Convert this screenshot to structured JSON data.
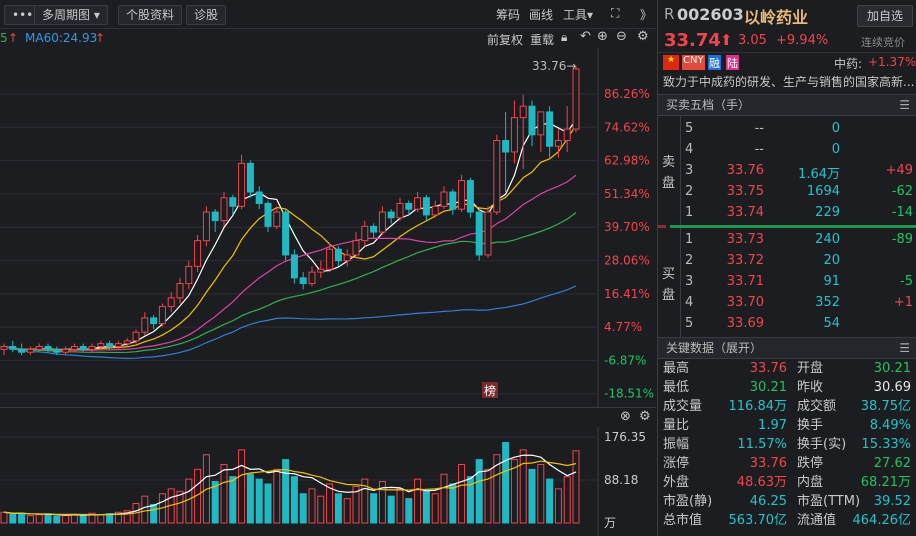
{
  "toolbar": {
    "more": "•••",
    "multi_period": "多周期图 ▾",
    "stock_info": "个股资料",
    "diagnose": "诊股",
    "chips": "筹码",
    "draw": "画线",
    "tools": "工具▾",
    "expand": "⛶",
    "collapse": "》"
  },
  "ma_legend": {
    "prev_suffix": "5",
    "ma60": "MA60:24.93"
  },
  "chart_toolbar": {
    "adjust": "前复权",
    "reload": "重载"
  },
  "chart_data": {
    "type": "candlestick",
    "y_axis_ticks": [
      "86.26%",
      "74.62%",
      "62.98%",
      "51.34%",
      "39.70%",
      "28.06%",
      "16.41%",
      "4.77%",
      "-6.87%",
      "-18.51%"
    ],
    "y_axis_values": [
      86.26,
      74.62,
      62.98,
      51.34,
      39.7,
      28.06,
      16.41,
      4.77,
      -6.87,
      -18.51
    ],
    "high_marker": "33.76→",
    "badge": "榜",
    "candles_pct": [
      [
        -3,
        -1,
        -5,
        -2
      ],
      [
        -2,
        0,
        -4,
        -3
      ],
      [
        -3,
        -1,
        -5,
        -4
      ],
      [
        -4,
        -2,
        -5,
        -3
      ],
      [
        -3,
        -1,
        -4,
        -2
      ],
      [
        -2,
        -1,
        -4,
        -3
      ],
      [
        -3,
        -2,
        -5,
        -4
      ],
      [
        -4,
        -2,
        -5,
        -3
      ],
      [
        -3,
        -1,
        -4,
        -2
      ],
      [
        -2,
        -1,
        -4,
        -3
      ],
      [
        -3,
        -1,
        -4,
        -2
      ],
      [
        -2,
        0,
        -3,
        -1
      ],
      [
        -1,
        0,
        -3,
        -2
      ],
      [
        -2,
        0,
        -3,
        -1
      ],
      [
        -1,
        1,
        -2,
        0
      ],
      [
        0,
        4,
        -1,
        3
      ],
      [
        3,
        10,
        2,
        8
      ],
      [
        8,
        9,
        4,
        6
      ],
      [
        6,
        13,
        5,
        12
      ],
      [
        12,
        17,
        10,
        15
      ],
      [
        15,
        22,
        13,
        20
      ],
      [
        20,
        28,
        18,
        26
      ],
      [
        26,
        37,
        24,
        35
      ],
      [
        35,
        47,
        33,
        45
      ],
      [
        45,
        46,
        38,
        42
      ],
      [
        42,
        52,
        40,
        50
      ],
      [
        50,
        51,
        44,
        47
      ],
      [
        47,
        65,
        46,
        62
      ],
      [
        62,
        63,
        50,
        52
      ],
      [
        52,
        54,
        46,
        48
      ],
      [
        48,
        49,
        38,
        40
      ],
      [
        40,
        47,
        39,
        45
      ],
      [
        45,
        46,
        28,
        30
      ],
      [
        30,
        32,
        20,
        22
      ],
      [
        22,
        24,
        18,
        20
      ],
      [
        20,
        26,
        19,
        24
      ],
      [
        24,
        28,
        22,
        25
      ],
      [
        25,
        34,
        24,
        32
      ],
      [
        32,
        33,
        26,
        28
      ],
      [
        28,
        32,
        26,
        30
      ],
      [
        30,
        38,
        29,
        35
      ],
      [
        35,
        42,
        33,
        40
      ],
      [
        40,
        41,
        36,
        38
      ],
      [
        38,
        47,
        37,
        45
      ],
      [
        45,
        46,
        41,
        43
      ],
      [
        43,
        50,
        42,
        48
      ],
      [
        48,
        49,
        44,
        46
      ],
      [
        46,
        52,
        45,
        50
      ],
      [
        50,
        51,
        42,
        44
      ],
      [
        44,
        49,
        43,
        47
      ],
      [
        47,
        54,
        46,
        52
      ],
      [
        52,
        53,
        44,
        46
      ],
      [
        46,
        58,
        45,
        56
      ],
      [
        56,
        57,
        43,
        45
      ],
      [
        45,
        46,
        28,
        30
      ],
      [
        30,
        47,
        29,
        45
      ],
      [
        45,
        72,
        44,
        70
      ],
      [
        70,
        80,
        52,
        66
      ],
      [
        66,
        84,
        62,
        78
      ],
      [
        78,
        86,
        60,
        82
      ],
      [
        82,
        84,
        68,
        72
      ],
      [
        72,
        80,
        66,
        80
      ],
      [
        80,
        82,
        64,
        68
      ],
      [
        68,
        74,
        64,
        70
      ],
      [
        70,
        82,
        66,
        74
      ],
      [
        74,
        96,
        73,
        95
      ]
    ],
    "ma_series": [
      {
        "name": "MA5",
        "color": "#ffffff",
        "period": 5
      },
      {
        "name": "MA10",
        "color": "#f2c200",
        "period": 10
      },
      {
        "name": "MA20",
        "color": "#e040a8",
        "period": 20
      },
      {
        "name": "MA30",
        "color": "#2db34a",
        "period": 30
      },
      {
        "name": "MA60",
        "color": "#2f7fd6",
        "period": 60
      }
    ],
    "volume": {
      "unit": "万",
      "ticks": [
        "176.35",
        "88.18"
      ],
      "tick_values": [
        176.35,
        88.18
      ],
      "values": [
        22,
        18,
        20,
        15,
        17,
        19,
        14,
        16,
        18,
        15,
        20,
        17,
        19,
        22,
        25,
        40,
        55,
        38,
        60,
        70,
        65,
        90,
        110,
        140,
        85,
        120,
        95,
        150,
        100,
        90,
        80,
        110,
        130,
        95,
        60,
        70,
        55,
        80,
        60,
        50,
        75,
        90,
        60,
        85,
        55,
        70,
        50,
        90,
        65,
        60,
        100,
        80,
        120,
        95,
        130,
        110,
        140,
        165,
        130,
        150,
        110,
        120,
        90,
        70,
        95,
        148
      ]
    },
    "colors": {
      "up": "#f0454b",
      "down": "#1fb9c3"
    }
  },
  "volume_controls": {
    "close": "⊗",
    "settings": "⚙"
  },
  "quote": {
    "prefix": "R",
    "code": "002603",
    "name": "以岭药业",
    "add_watch": "加自选",
    "price": "33.74",
    "change": "3.05",
    "change_pct": "+9.94%",
    "status": "连续竞价",
    "tags": [
      "CNY",
      "融",
      "陆"
    ],
    "sector": "中药:",
    "sector_change": "+1.37%",
    "description": "致力于中成药的研发、生产与销售的国家高新..."
  },
  "orderbook": {
    "title": "买卖五档（手）",
    "sell_label": "卖盘",
    "buy_label": "买盘",
    "sell": [
      {
        "lvl": "5",
        "price": "--",
        "vol": "0",
        "chg": ""
      },
      {
        "lvl": "4",
        "price": "--",
        "vol": "0",
        "chg": ""
      },
      {
        "lvl": "3",
        "price": "33.76",
        "vol": "1.64万",
        "chg": "+49"
      },
      {
        "lvl": "2",
        "price": "33.75",
        "vol": "1694",
        "chg": "-62"
      },
      {
        "lvl": "1",
        "price": "33.74",
        "vol": "229",
        "chg": "-14"
      }
    ],
    "buy": [
      {
        "lvl": "1",
        "price": "33.73",
        "vol": "240",
        "chg": "-89"
      },
      {
        "lvl": "2",
        "price": "33.72",
        "vol": "20",
        "chg": ""
      },
      {
        "lvl": "3",
        "price": "33.71",
        "vol": "91",
        "chg": "-5"
      },
      {
        "lvl": "4",
        "price": "33.70",
        "vol": "352",
        "chg": "+1"
      },
      {
        "lvl": "5",
        "price": "33.69",
        "vol": "54",
        "chg": ""
      }
    ]
  },
  "keydata": {
    "title": "关键数据（展开）",
    "rows": [
      [
        "最高",
        "33.76",
        "red",
        "开盘",
        "30.21",
        "green"
      ],
      [
        "最低",
        "30.21",
        "green",
        "昨收",
        "30.69",
        "white"
      ],
      [
        "成交量",
        "116.84万",
        "cyan",
        "成交额",
        "38.75亿",
        "cyan"
      ],
      [
        "量比",
        "1.97",
        "cyan",
        "换手",
        "8.49%",
        "cyan"
      ],
      [
        "振幅",
        "11.57%",
        "cyan",
        "换手(实)",
        "15.33%",
        "cyan"
      ],
      [
        "涨停",
        "33.76",
        "red",
        "跌停",
        "27.62",
        "green"
      ],
      [
        "外盘",
        "48.63万",
        "red",
        "内盘",
        "68.21万",
        "green"
      ],
      [
        "市盈(静)",
        "46.25",
        "cyan",
        "市盈(TTM)",
        "39.52",
        "cyan"
      ],
      [
        "总市值",
        "563.70亿",
        "cyan",
        "流通值",
        "464.26亿",
        "cyan"
      ]
    ]
  }
}
